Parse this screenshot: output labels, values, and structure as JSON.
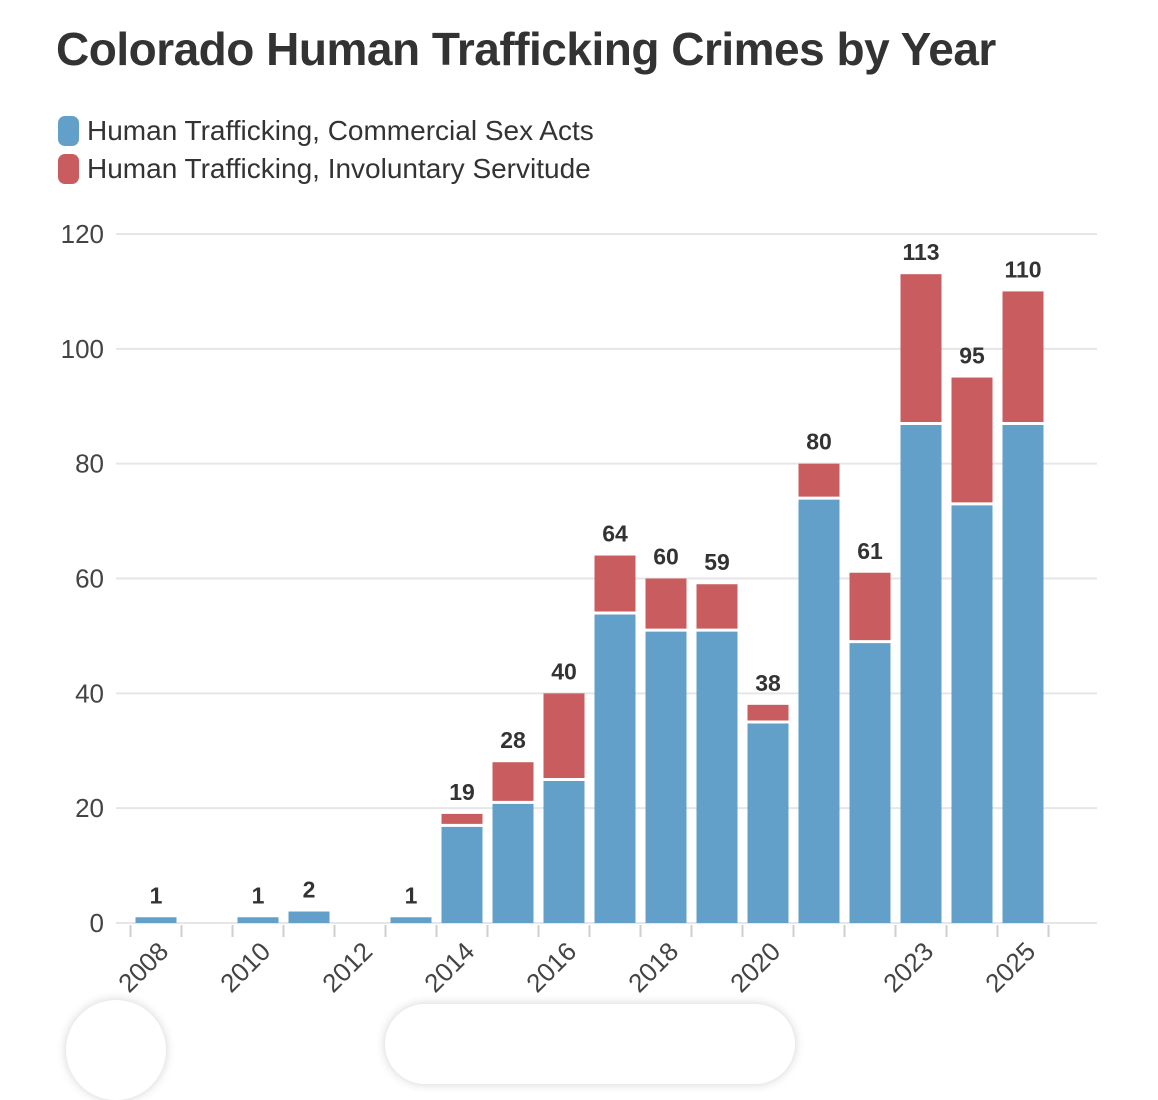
{
  "colors": {
    "series_commercial": "#62a0c9",
    "series_involuntary": "#c95c5e",
    "grid": "#e6e6e6",
    "text": "#333333",
    "axis_text": "#444444"
  },
  "chart_data": {
    "type": "bar",
    "stacked": true,
    "title": "Colorado Human Trafficking Crimes by Year",
    "xlabel": "",
    "ylabel": "",
    "ylim": [
      0,
      120
    ],
    "yticks": [
      0,
      20,
      40,
      60,
      80,
      100,
      120
    ],
    "grid": true,
    "legend_position": "top-left",
    "categories": [
      "2008",
      "2009",
      "2010",
      "2011",
      "2012",
      "2013",
      "2014",
      "2015",
      "2016",
      "2017",
      "2018",
      "2019",
      "2020",
      "2021",
      "2022",
      "2023",
      "2024",
      "2025"
    ],
    "x_tick_labels": [
      "2008",
      "",
      "2010",
      "",
      "2012",
      "",
      "2014",
      "",
      "2016",
      "",
      "2018",
      "",
      "2020",
      "",
      "",
      "2023",
      "",
      "2025"
    ],
    "series": [
      {
        "name": "Human Trafficking, Commercial Sex Acts",
        "values": [
          1,
          0,
          1,
          2,
          0,
          1,
          17,
          21,
          25,
          54,
          51,
          51,
          35,
          74,
          49,
          87,
          73,
          87
        ]
      },
      {
        "name": "Human Trafficking, Involuntary Servitude",
        "values": [
          0,
          0,
          0,
          0,
          0,
          0,
          2,
          7,
          15,
          10,
          9,
          8,
          3,
          6,
          12,
          26,
          22,
          23
        ]
      }
    ],
    "totals": [
      "1",
      "",
      "1",
      "2",
      "",
      "1",
      "19",
      "28",
      "40",
      "64",
      "60",
      "59",
      "38",
      "80",
      "61",
      "113",
      "95",
      "110"
    ]
  }
}
